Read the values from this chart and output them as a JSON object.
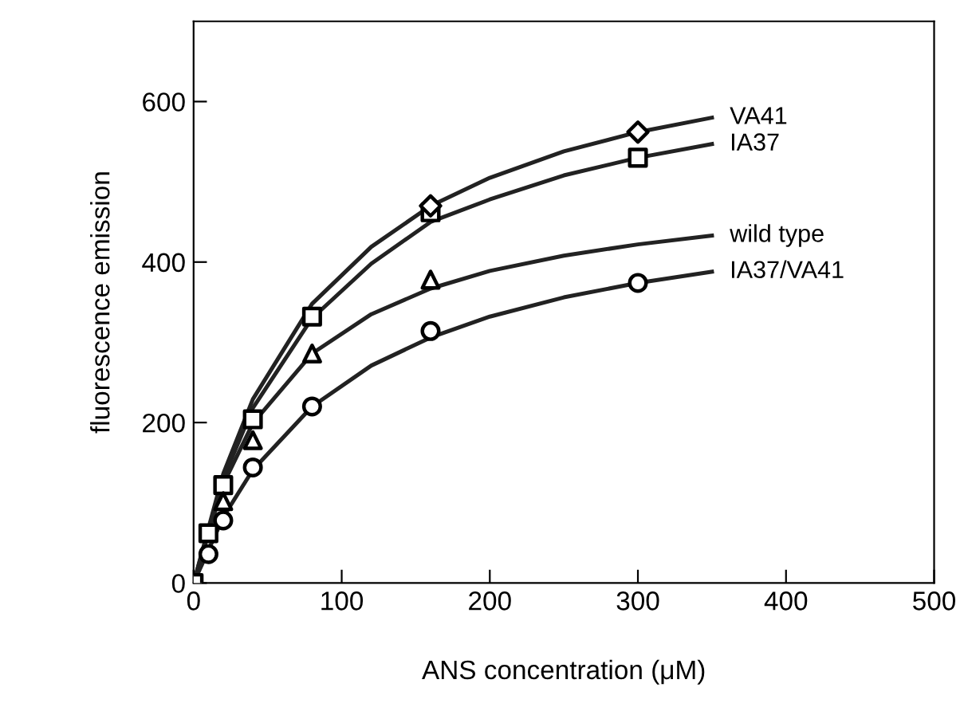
{
  "chart_data": {
    "type": "scatter",
    "xlabel": "ANS concentration (μM)",
    "ylabel": "fluorescence emission",
    "xlim": [
      0,
      500
    ],
    "ylim": [
      0,
      700
    ],
    "xticks": [
      0,
      100,
      200,
      300,
      400,
      500
    ],
    "yticks": [
      0,
      200,
      400,
      600
    ],
    "grid": false,
    "legend": false,
    "series": [
      {
        "type": "line",
        "name": "VA41",
        "color": "#222222",
        "marker": "none",
        "x": [
          0,
          20,
          40,
          80,
          120,
          160,
          200,
          250,
          300,
          350
        ],
        "values": [
          0,
          136,
          229,
          348,
          419,
          470,
          505,
          538,
          562,
          580
        ]
      },
      {
        "type": "line",
        "name": "IA37",
        "color": "#222222",
        "marker": "none",
        "x": [
          0,
          20,
          40,
          80,
          120,
          160,
          200,
          250,
          300,
          350
        ],
        "values": [
          0,
          130,
          218,
          330,
          398,
          450,
          478,
          508,
          530,
          547
        ]
      },
      {
        "type": "line",
        "name": "wild type",
        "color": "#222222",
        "marker": "none",
        "x": [
          0,
          20,
          40,
          80,
          120,
          160,
          200,
          250,
          300,
          350
        ],
        "values": [
          0,
          123,
          199,
          286,
          335,
          367,
          389,
          408,
          422,
          433
        ]
      },
      {
        "type": "line",
        "name": "IA37/VA41",
        "color": "#222222",
        "marker": "none",
        "x": [
          0,
          20,
          40,
          80,
          120,
          160,
          200,
          250,
          300,
          350
        ],
        "values": [
          0,
          82,
          141,
          220,
          271,
          306,
          332,
          356,
          374,
          388
        ]
      },
      {
        "color": "#000000",
        "marker": "diamond",
        "x": [
          160,
          300
        ],
        "values": [
          470,
          562
        ]
      },
      {
        "color": "#000000",
        "marker": "square",
        "x": [
          0,
          10,
          20,
          40,
          80,
          160,
          300
        ],
        "values": [
          0,
          62,
          122,
          204,
          332,
          462,
          530
        ]
      },
      {
        "color": "#000000",
        "marker": "triangle",
        "x": [
          20,
          40,
          80,
          160
        ],
        "values": [
          102,
          178,
          286,
          378
        ]
      },
      {
        "color": "#000000",
        "marker": "circle",
        "x": [
          10,
          20,
          40,
          80,
          160,
          300
        ],
        "values": [
          36,
          78,
          144,
          220,
          314,
          374
        ]
      }
    ]
  }
}
